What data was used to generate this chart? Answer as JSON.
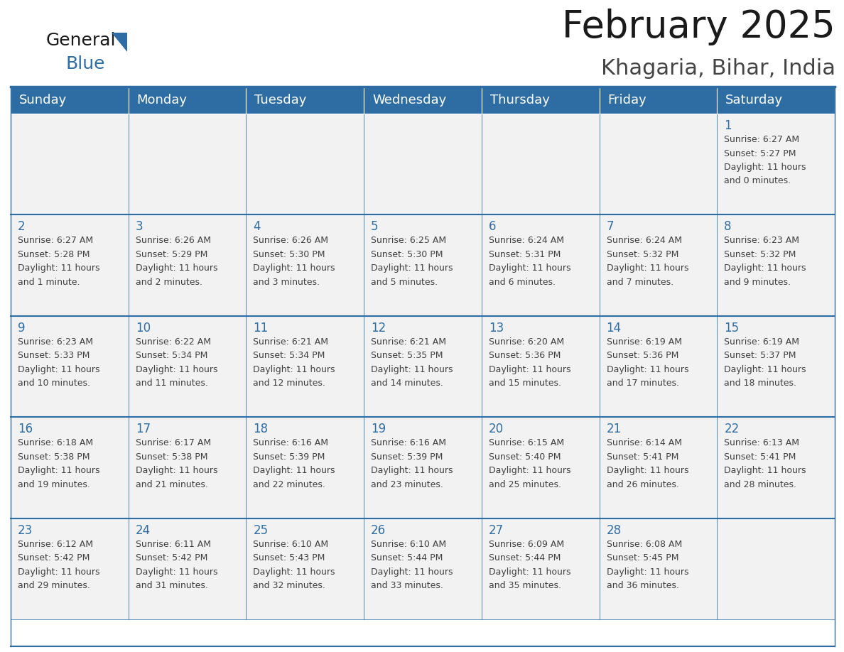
{
  "title": "February 2025",
  "subtitle": "Khagaria, Bihar, India",
  "header_color": "#2E6DA4",
  "header_text_color": "#FFFFFF",
  "grid_line_color": "#2E6DA4",
  "background_color": "#FFFFFF",
  "cell_bg_color": "#F2F2F2",
  "days_of_week": [
    "Sunday",
    "Monday",
    "Tuesday",
    "Wednesday",
    "Thursday",
    "Friday",
    "Saturday"
  ],
  "day_number_color": "#2E6DA4",
  "cell_text_color": "#404040",
  "calendar_data": [
    [
      null,
      null,
      null,
      null,
      null,
      null,
      1
    ],
    [
      2,
      3,
      4,
      5,
      6,
      7,
      8
    ],
    [
      9,
      10,
      11,
      12,
      13,
      14,
      15
    ],
    [
      16,
      17,
      18,
      19,
      20,
      21,
      22
    ],
    [
      23,
      24,
      25,
      26,
      27,
      28,
      null
    ]
  ],
  "cell_info": {
    "1": {
      "sunrise": "6:27 AM",
      "sunset": "5:27 PM",
      "daylight": "11 hours and 0 minutes."
    },
    "2": {
      "sunrise": "6:27 AM",
      "sunset": "5:28 PM",
      "daylight": "11 hours and 1 minute."
    },
    "3": {
      "sunrise": "6:26 AM",
      "sunset": "5:29 PM",
      "daylight": "11 hours and 2 minutes."
    },
    "4": {
      "sunrise": "6:26 AM",
      "sunset": "5:30 PM",
      "daylight": "11 hours and 3 minutes."
    },
    "5": {
      "sunrise": "6:25 AM",
      "sunset": "5:30 PM",
      "daylight": "11 hours and 5 minutes."
    },
    "6": {
      "sunrise": "6:24 AM",
      "sunset": "5:31 PM",
      "daylight": "11 hours and 6 minutes."
    },
    "7": {
      "sunrise": "6:24 AM",
      "sunset": "5:32 PM",
      "daylight": "11 hours and 7 minutes."
    },
    "8": {
      "sunrise": "6:23 AM",
      "sunset": "5:32 PM",
      "daylight": "11 hours and 9 minutes."
    },
    "9": {
      "sunrise": "6:23 AM",
      "sunset": "5:33 PM",
      "daylight": "11 hours and 10 minutes."
    },
    "10": {
      "sunrise": "6:22 AM",
      "sunset": "5:34 PM",
      "daylight": "11 hours and 11 minutes."
    },
    "11": {
      "sunrise": "6:21 AM",
      "sunset": "5:34 PM",
      "daylight": "11 hours and 12 minutes."
    },
    "12": {
      "sunrise": "6:21 AM",
      "sunset": "5:35 PM",
      "daylight": "11 hours and 14 minutes."
    },
    "13": {
      "sunrise": "6:20 AM",
      "sunset": "5:36 PM",
      "daylight": "11 hours and 15 minutes."
    },
    "14": {
      "sunrise": "6:19 AM",
      "sunset": "5:36 PM",
      "daylight": "11 hours and 17 minutes."
    },
    "15": {
      "sunrise": "6:19 AM",
      "sunset": "5:37 PM",
      "daylight": "11 hours and 18 minutes."
    },
    "16": {
      "sunrise": "6:18 AM",
      "sunset": "5:38 PM",
      "daylight": "11 hours and 19 minutes."
    },
    "17": {
      "sunrise": "6:17 AM",
      "sunset": "5:38 PM",
      "daylight": "11 hours and 21 minutes."
    },
    "18": {
      "sunrise": "6:16 AM",
      "sunset": "5:39 PM",
      "daylight": "11 hours and 22 minutes."
    },
    "19": {
      "sunrise": "6:16 AM",
      "sunset": "5:39 PM",
      "daylight": "11 hours and 23 minutes."
    },
    "20": {
      "sunrise": "6:15 AM",
      "sunset": "5:40 PM",
      "daylight": "11 hours and 25 minutes."
    },
    "21": {
      "sunrise": "6:14 AM",
      "sunset": "5:41 PM",
      "daylight": "11 hours and 26 minutes."
    },
    "22": {
      "sunrise": "6:13 AM",
      "sunset": "5:41 PM",
      "daylight": "11 hours and 28 minutes."
    },
    "23": {
      "sunrise": "6:12 AM",
      "sunset": "5:42 PM",
      "daylight": "11 hours and 29 minutes."
    },
    "24": {
      "sunrise": "6:11 AM",
      "sunset": "5:42 PM",
      "daylight": "11 hours and 31 minutes."
    },
    "25": {
      "sunrise": "6:10 AM",
      "sunset": "5:43 PM",
      "daylight": "11 hours and 32 minutes."
    },
    "26": {
      "sunrise": "6:10 AM",
      "sunset": "5:44 PM",
      "daylight": "11 hours and 33 minutes."
    },
    "27": {
      "sunrise": "6:09 AM",
      "sunset": "5:44 PM",
      "daylight": "11 hours and 35 minutes."
    },
    "28": {
      "sunrise": "6:08 AM",
      "sunset": "5:45 PM",
      "daylight": "11 hours and 36 minutes."
    }
  },
  "title_fontsize": 38,
  "subtitle_fontsize": 22,
  "header_fontsize": 13,
  "day_num_fontsize": 12,
  "cell_text_fontsize": 9.0,
  "logo_general_fontsize": 18,
  "logo_blue_fontsize": 18
}
